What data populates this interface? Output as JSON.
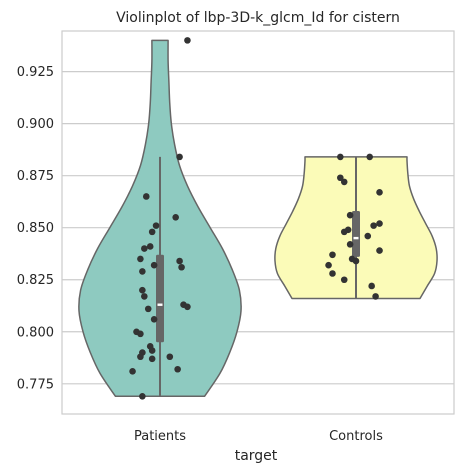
{
  "chart_data": {
    "type": "violin",
    "title": "Violinplot of lbp-3D-k_glcm_Id for cistern",
    "xlabel": "target",
    "ylabel": "",
    "categories": [
      "Patients",
      "Controls"
    ],
    "ylim": [
      0.7605,
      0.9445
    ],
    "yticks": [
      "0.775",
      "0.800",
      "0.825",
      "0.850",
      "0.875",
      "0.900",
      "0.925"
    ],
    "grid": "horizontal",
    "colors": {
      "Patients": "#8ecac0",
      "Controls": "#fbfbb8",
      "outline": "#666666",
      "points": "#333333",
      "box": "#666666",
      "grid": "#cccccc",
      "frame": "#cccccc"
    },
    "series": [
      {
        "category": "Patients",
        "min": 0.769,
        "max": 0.94,
        "q1": 0.795,
        "median": 0.813,
        "q3": 0.837,
        "whisker_low": 0.769,
        "whisker_high": 0.884,
        "density": [
          [
            0.769,
            0.55
          ],
          [
            0.78,
            0.74
          ],
          [
            0.79,
            0.86
          ],
          [
            0.8,
            0.95
          ],
          [
            0.81,
            1.0
          ],
          [
            0.82,
            0.98
          ],
          [
            0.83,
            0.89
          ],
          [
            0.84,
            0.77
          ],
          [
            0.85,
            0.62
          ],
          [
            0.86,
            0.47
          ],
          [
            0.87,
            0.34
          ],
          [
            0.88,
            0.24
          ],
          [
            0.89,
            0.18
          ],
          [
            0.9,
            0.14
          ],
          [
            0.91,
            0.12
          ],
          [
            0.92,
            0.11
          ],
          [
            0.93,
            0.1
          ],
          [
            0.94,
            0.1
          ]
        ],
        "points": [
          [
            0.14,
            0.94
          ],
          [
            0.1,
            0.884
          ],
          [
            -0.07,
            0.865
          ],
          [
            0.08,
            0.855
          ],
          [
            -0.02,
            0.851
          ],
          [
            -0.04,
            0.848
          ],
          [
            -0.05,
            0.841
          ],
          [
            -0.08,
            0.84
          ],
          [
            -0.1,
            0.835
          ],
          [
            0.1,
            0.834
          ],
          [
            -0.03,
            0.832
          ],
          [
            0.11,
            0.831
          ],
          [
            -0.09,
            0.829
          ],
          [
            -0.09,
            0.82
          ],
          [
            -0.08,
            0.817
          ],
          [
            0.12,
            0.813
          ],
          [
            0.14,
            0.812
          ],
          [
            -0.06,
            0.811
          ],
          [
            -0.03,
            0.806
          ],
          [
            -0.12,
            0.8
          ],
          [
            -0.1,
            0.799
          ],
          [
            -0.05,
            0.793
          ],
          [
            -0.04,
            0.791
          ],
          [
            -0.09,
            0.79
          ],
          [
            -0.1,
            0.788
          ],
          [
            0.05,
            0.788
          ],
          [
            -0.04,
            0.787
          ],
          [
            0.09,
            0.782
          ],
          [
            -0.14,
            0.781
          ],
          [
            -0.09,
            0.769
          ]
        ]
      },
      {
        "category": "Controls",
        "min": 0.816,
        "max": 0.884,
        "q1": 0.836,
        "median": 0.845,
        "q3": 0.858,
        "whisker_low": 0.816,
        "whisker_high": 0.884,
        "density": [
          [
            0.816,
            0.79
          ],
          [
            0.822,
            0.88
          ],
          [
            0.828,
            0.97
          ],
          [
            0.834,
            1.0
          ],
          [
            0.84,
            0.99
          ],
          [
            0.846,
            0.94
          ],
          [
            0.852,
            0.86
          ],
          [
            0.858,
            0.78
          ],
          [
            0.864,
            0.71
          ],
          [
            0.87,
            0.66
          ],
          [
            0.876,
            0.64
          ],
          [
            0.882,
            0.63
          ],
          [
            0.884,
            0.63
          ]
        ],
        "points": [
          [
            -0.08,
            0.884
          ],
          [
            0.07,
            0.884
          ],
          [
            -0.08,
            0.874
          ],
          [
            -0.06,
            0.872
          ],
          [
            0.12,
            0.867
          ],
          [
            -0.03,
            0.856
          ],
          [
            0.12,
            0.852
          ],
          [
            0.09,
            0.851
          ],
          [
            -0.04,
            0.849
          ],
          [
            -0.06,
            0.848
          ],
          [
            0.06,
            0.846
          ],
          [
            -0.03,
            0.842
          ],
          [
            0.12,
            0.839
          ],
          [
            -0.12,
            0.837
          ],
          [
            -0.02,
            0.835
          ],
          [
            0.0,
            0.834
          ],
          [
            -0.14,
            0.832
          ],
          [
            -0.12,
            0.828
          ],
          [
            -0.06,
            0.825
          ],
          [
            0.08,
            0.822
          ],
          [
            0.1,
            0.817
          ]
        ]
      }
    ]
  }
}
